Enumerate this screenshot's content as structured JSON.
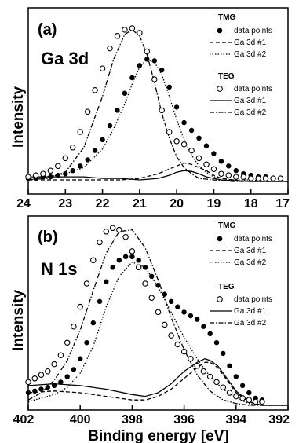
{
  "chart_data": [
    {
      "type": "line",
      "panel_label": "(a)",
      "core_level": "Ga 3d",
      "ylabel": "Intensity",
      "xlabel": "",
      "xlim": [
        24,
        17
      ],
      "ylim": [
        0,
        1.0
      ],
      "xticks": [
        "24",
        "23",
        "22",
        "21",
        "20",
        "19",
        "18",
        "17"
      ],
      "legend": [
        {
          "group": "TMG",
          "entries": [
            {
              "name": "data points",
              "marker": "filled-circle"
            },
            {
              "name": "Ga 3d #1",
              "line": "dashed"
            },
            {
              "name": "Ga 3d #2",
              "line": "dotted"
            }
          ]
        },
        {
          "group": "TEG",
          "entries": [
            {
              "name": "data points",
              "marker": "open-circle"
            },
            {
              "name": "Ga 3d #1",
              "line": "solid"
            },
            {
              "name": "Ga 3d #2",
              "line": "dash-dot"
            }
          ]
        }
      ],
      "series": [
        {
          "name": "TMG data points",
          "style": "filled-circle",
          "x": [
            24.0,
            23.8,
            23.6,
            23.4,
            23.2,
            23.0,
            22.8,
            22.6,
            22.4,
            22.2,
            22.0,
            21.8,
            21.6,
            21.4,
            21.2,
            21.0,
            20.8,
            20.6,
            20.4,
            20.2,
            20.0,
            19.8,
            19.6,
            19.4,
            19.2,
            19.0,
            18.8,
            18.6,
            18.4,
            18.2,
            18.0,
            17.8,
            17.6,
            17.4,
            17.2
          ],
          "y": [
            0.02,
            0.02,
            0.03,
            0.03,
            0.04,
            0.05,
            0.07,
            0.1,
            0.14,
            0.2,
            0.27,
            0.36,
            0.46,
            0.57,
            0.67,
            0.75,
            0.79,
            0.78,
            0.72,
            0.61,
            0.48,
            0.38,
            0.33,
            0.28,
            0.23,
            0.18,
            0.13,
            0.1,
            0.07,
            0.05,
            0.04,
            0.03,
            0.03,
            0.02,
            0.02
          ]
        },
        {
          "name": "TEG data points",
          "style": "open-circle",
          "x": [
            24.0,
            23.8,
            23.6,
            23.4,
            23.2,
            23.0,
            22.8,
            22.6,
            22.4,
            22.2,
            22.0,
            21.8,
            21.6,
            21.4,
            21.2,
            21.0,
            20.8,
            20.6,
            20.4,
            20.2,
            20.0,
            19.8,
            19.6,
            19.4,
            19.2,
            19.0,
            18.8,
            18.6,
            18.4,
            18.2,
            18.0,
            17.8,
            17.6,
            17.4,
            17.2
          ],
          "y": [
            0.03,
            0.04,
            0.05,
            0.07,
            0.1,
            0.15,
            0.22,
            0.32,
            0.45,
            0.59,
            0.73,
            0.86,
            0.94,
            0.98,
            0.99,
            0.96,
            0.84,
            0.66,
            0.46,
            0.32,
            0.26,
            0.24,
            0.2,
            0.15,
            0.11,
            0.08,
            0.05,
            0.04,
            0.03,
            0.03,
            0.02,
            0.02,
            0.02,
            0.02,
            0.02
          ]
        },
        {
          "name": "TMG Ga 3d #1",
          "style": "dashed",
          "x": [
            24.0,
            23.5,
            23.0,
            22.5,
            22.0,
            21.5,
            21.0,
            20.5,
            20.2,
            20.0,
            19.8,
            19.6,
            19.4,
            19.2,
            19.0,
            18.8,
            18.5,
            18.0,
            17.5,
            17.0
          ],
          "y": [
            0.01,
            0.01,
            0.01,
            0.01,
            0.01,
            0.01,
            0.02,
            0.05,
            0.08,
            0.1,
            0.12,
            0.11,
            0.09,
            0.07,
            0.04,
            0.02,
            0.01,
            0.0,
            0.0,
            0.0
          ]
        },
        {
          "name": "TMG Ga 3d #2",
          "style": "dotted",
          "x": [
            24.0,
            23.5,
            23.0,
            22.5,
            22.0,
            21.7,
            21.4,
            21.2,
            21.0,
            20.8,
            20.6,
            20.4,
            20.2,
            20.0,
            19.8,
            19.6,
            19.4,
            19.2,
            19.0,
            18.5,
            18.0,
            17.5,
            17.0
          ],
          "y": [
            0.02,
            0.03,
            0.05,
            0.09,
            0.21,
            0.34,
            0.5,
            0.63,
            0.74,
            0.79,
            0.77,
            0.69,
            0.55,
            0.4,
            0.27,
            0.17,
            0.1,
            0.06,
            0.03,
            0.01,
            0.01,
            0.0,
            0.0
          ]
        },
        {
          "name": "TEG Ga 3d #1",
          "style": "solid",
          "x": [
            24.0,
            23.5,
            23.0,
            22.5,
            22.0,
            21.5,
            21.0,
            20.5,
            20.2,
            20.0,
            19.8,
            19.6,
            19.4,
            19.2,
            19.0,
            18.8,
            18.5,
            18.0,
            17.5,
            17.0
          ],
          "y": [
            0.03,
            0.03,
            0.03,
            0.03,
            0.02,
            0.02,
            0.01,
            0.02,
            0.04,
            0.06,
            0.07,
            0.065,
            0.05,
            0.03,
            0.02,
            0.01,
            0.005,
            0.0,
            0.0,
            0.0
          ]
        },
        {
          "name": "TEG Ga 3d #2",
          "style": "dash-dot",
          "x": [
            24.0,
            23.5,
            23.0,
            22.5,
            22.0,
            21.7,
            21.4,
            21.2,
            21.0,
            20.8,
            20.6,
            20.4,
            20.2,
            20.0,
            19.8,
            19.6,
            19.4,
            19.0,
            18.5,
            18.0,
            17.5,
            17.0
          ],
          "y": [
            0.01,
            0.02,
            0.06,
            0.22,
            0.55,
            0.79,
            0.95,
            0.98,
            0.94,
            0.82,
            0.64,
            0.44,
            0.28,
            0.16,
            0.09,
            0.05,
            0.02,
            0.01,
            0.0,
            0.0,
            0.0,
            0.0
          ]
        }
      ]
    },
    {
      "type": "line",
      "panel_label": "(b)",
      "core_level": "N 1s",
      "ylabel": "Intensity",
      "xlabel": "Binding energy [eV]",
      "xlim": [
        402,
        392
      ],
      "ylim": [
        0,
        1.0
      ],
      "xticks": [
        "402",
        "400",
        "398",
        "396",
        "394",
        "392"
      ],
      "legend": [
        {
          "group": "TMG",
          "entries": [
            {
              "name": "data points",
              "marker": "filled-circle"
            },
            {
              "name": "Ga 3d #1",
              "line": "dashed"
            },
            {
              "name": "Ga 3d #2",
              "line": "dotted"
            }
          ]
        },
        {
          "group": "TEG",
          "entries": [
            {
              "name": "data points",
              "marker": "open-circle"
            },
            {
              "name": "Ga 3d #1",
              "line": "solid"
            },
            {
              "name": "Ga 3d #2",
              "line": "dash-dot"
            }
          ]
        }
      ],
      "series": [
        {
          "name": "TMG data points",
          "style": "filled-circle",
          "x": [
            402.0,
            401.75,
            401.5,
            401.25,
            401.0,
            400.75,
            400.5,
            400.25,
            400.0,
            399.75,
            399.5,
            399.25,
            399.0,
            398.75,
            398.5,
            398.25,
            398.0,
            397.75,
            397.5,
            397.25,
            397.0,
            396.75,
            396.5,
            396.25,
            396.0,
            395.75,
            395.5,
            395.25,
            395.0,
            394.75,
            394.5,
            394.25,
            394.0,
            393.75,
            393.5,
            393.25,
            393.0
          ],
          "y": [
            0.07,
            0.08,
            0.09,
            0.1,
            0.11,
            0.13,
            0.16,
            0.2,
            0.26,
            0.35,
            0.46,
            0.58,
            0.69,
            0.77,
            0.81,
            0.83,
            0.83,
            0.81,
            0.77,
            0.72,
            0.67,
            0.62,
            0.58,
            0.55,
            0.52,
            0.5,
            0.48,
            0.44,
            0.4,
            0.35,
            0.29,
            0.22,
            0.16,
            0.11,
            0.07,
            0.04,
            0.03
          ]
        },
        {
          "name": "TEG data points",
          "style": "open-circle",
          "x": [
            402.0,
            401.75,
            401.5,
            401.25,
            401.0,
            400.75,
            400.5,
            400.25,
            400.0,
            399.75,
            399.5,
            399.25,
            399.0,
            398.75,
            398.5,
            398.25,
            398.0,
            397.75,
            397.5,
            397.25,
            397.0,
            396.75,
            396.5,
            396.25,
            396.0,
            395.75,
            395.5,
            395.25,
            395.0,
            394.75,
            394.5,
            394.25,
            394.0,
            393.75,
            393.5,
            393.25,
            393.0
          ],
          "y": [
            0.13,
            0.15,
            0.17,
            0.19,
            0.23,
            0.28,
            0.35,
            0.44,
            0.55,
            0.68,
            0.81,
            0.91,
            0.97,
            0.99,
            0.98,
            0.94,
            0.86,
            0.77,
            0.68,
            0.6,
            0.52,
            0.45,
            0.39,
            0.34,
            0.3,
            0.26,
            0.22,
            0.19,
            0.16,
            0.13,
            0.1,
            0.07,
            0.05,
            0.04,
            0.03,
            0.02,
            0.02
          ]
        },
        {
          "name": "TMG Ga 3d #1",
          "style": "dashed",
          "x": [
            402.0,
            401.0,
            400.0,
            399.0,
            398.0,
            397.5,
            397.0,
            396.5,
            396.0,
            395.5,
            395.2,
            395.0,
            394.7,
            394.4,
            394.0,
            393.5,
            393.0,
            392.0
          ],
          "y": [
            0.07,
            0.08,
            0.07,
            0.05,
            0.03,
            0.03,
            0.05,
            0.09,
            0.15,
            0.21,
            0.24,
            0.24,
            0.21,
            0.15,
            0.07,
            0.02,
            0.0,
            0.0
          ]
        },
        {
          "name": "TMG Ga 3d #2",
          "style": "dotted",
          "x": [
            402.0,
            401.0,
            400.5,
            400.0,
            399.5,
            399.0,
            398.5,
            398.0,
            397.5,
            397.0,
            396.5,
            396.0,
            395.5,
            395.0,
            394.5,
            394.0,
            393.5,
            393.0,
            392.0
          ],
          "y": [
            0.02,
            0.06,
            0.1,
            0.18,
            0.33,
            0.55,
            0.72,
            0.8,
            0.77,
            0.66,
            0.52,
            0.38,
            0.26,
            0.16,
            0.09,
            0.04,
            0.01,
            0.0,
            0.0
          ]
        },
        {
          "name": "TEG Ga 3d #1",
          "style": "solid",
          "x": [
            402.0,
            401.0,
            400.0,
            399.0,
            398.0,
            397.5,
            397.0,
            396.5,
            396.0,
            395.5,
            395.2,
            395.0,
            394.7,
            394.4,
            394.0,
            393.5,
            393.0,
            392.0
          ],
          "y": [
            0.11,
            0.12,
            0.11,
            0.09,
            0.06,
            0.05,
            0.07,
            0.12,
            0.19,
            0.24,
            0.26,
            0.25,
            0.22,
            0.16,
            0.08,
            0.02,
            0.0,
            0.0
          ]
        },
        {
          "name": "TEG Ga 3d #2",
          "style": "dash-dot",
          "x": [
            402.0,
            401.5,
            401.0,
            400.5,
            400.0,
            399.5,
            399.0,
            398.5,
            398.0,
            397.5,
            397.0,
            396.5,
            396.0,
            395.5,
            395.0,
            394.5,
            394.0,
            393.5,
            393.0,
            392.0
          ],
          "y": [
            0.03,
            0.07,
            0.14,
            0.25,
            0.42,
            0.64,
            0.85,
            0.97,
            0.98,
            0.88,
            0.7,
            0.49,
            0.31,
            0.17,
            0.08,
            0.03,
            0.01,
            0.0,
            0.0,
            0.0
          ]
        }
      ]
    }
  ]
}
